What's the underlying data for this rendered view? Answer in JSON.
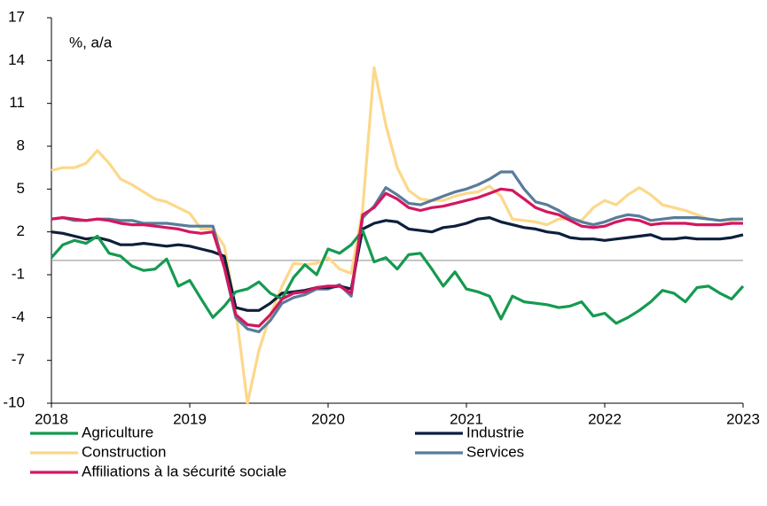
{
  "chart_data": {
    "type": "line",
    "annotation": "%, a/a",
    "x": [
      2018,
      2018.083,
      2018.167,
      2018.25,
      2018.333,
      2018.417,
      2018.5,
      2018.583,
      2018.667,
      2018.75,
      2018.833,
      2018.917,
      2019,
      2019.083,
      2019.167,
      2019.25,
      2019.333,
      2019.417,
      2019.5,
      2019.583,
      2019.667,
      2019.75,
      2019.833,
      2019.917,
      2020,
      2020.083,
      2020.167,
      2020.25,
      2020.333,
      2020.417,
      2020.5,
      2020.583,
      2020.667,
      2020.75,
      2020.833,
      2020.917,
      2021,
      2021.083,
      2021.167,
      2021.25,
      2021.333,
      2021.417,
      2021.5,
      2021.583,
      2021.667,
      2021.75,
      2021.833,
      2021.917,
      2022,
      2022.083,
      2022.167,
      2022.25,
      2022.333,
      2022.417,
      2022.5,
      2022.583,
      2022.667,
      2022.75,
      2022.833,
      2022.917,
      2023
    ],
    "series": [
      {
        "name": "Agriculture",
        "color": "#159a50",
        "values": [
          0.2,
          1.1,
          1.4,
          1.2,
          1.7,
          0.5,
          0.3,
          -0.4,
          -0.7,
          -0.6,
          0.1,
          -1.8,
          -1.4,
          -2.7,
          -4.0,
          -3.2,
          -2.2,
          -2.0,
          -1.5,
          -2.3,
          -2.7,
          -1.2,
          -0.3,
          -1.0,
          0.8,
          0.5,
          1.1,
          2.1,
          -0.1,
          0.2,
          -0.6,
          0.4,
          0.5,
          -0.6,
          -1.8,
          -0.8,
          -2.0,
          -2.2,
          -2.5,
          -4.1,
          -2.5,
          -2.9,
          -3.0,
          -3.1,
          -3.3,
          -3.2,
          -2.9,
          -3.9,
          -3.7,
          -4.4,
          -4.0,
          -3.5,
          -2.9,
          -2.1,
          -2.3,
          -2.9,
          -1.9,
          -1.8,
          -2.3,
          -2.7,
          -1.8
        ]
      },
      {
        "name": "Industrie",
        "color": "#0d1f3c",
        "values": [
          2.0,
          1.9,
          1.7,
          1.5,
          1.6,
          1.4,
          1.1,
          1.1,
          1.2,
          1.1,
          1.0,
          1.1,
          1.0,
          0.8,
          0.6,
          0.3,
          -3.3,
          -3.5,
          -3.5,
          -3.0,
          -2.3,
          -2.2,
          -2.1,
          -1.9,
          -1.9,
          -1.8,
          -2.0,
          2.2,
          2.6,
          2.8,
          2.7,
          2.2,
          2.1,
          2.0,
          2.3,
          2.4,
          2.6,
          2.9,
          3.0,
          2.7,
          2.5,
          2.3,
          2.2,
          2.0,
          1.9,
          1.6,
          1.5,
          1.5,
          1.4,
          1.5,
          1.6,
          1.7,
          1.8,
          1.5,
          1.5,
          1.6,
          1.5,
          1.5,
          1.5,
          1.6,
          1.8
        ]
      },
      {
        "name": "Construction",
        "color": "#fcd88a",
        "values": [
          6.3,
          6.5,
          6.5,
          6.8,
          7.7,
          6.8,
          5.7,
          5.3,
          4.8,
          4.3,
          4.1,
          3.7,
          3.3,
          2.2,
          2.2,
          1.0,
          -3.5,
          -10.0,
          -6.3,
          -3.8,
          -1.8,
          -0.2,
          -0.3,
          -0.2,
          0.2,
          -0.6,
          -0.9,
          3.6,
          13.5,
          9.5,
          6.5,
          4.9,
          4.3,
          4.2,
          4.2,
          4.5,
          4.7,
          4.8,
          5.2,
          4.5,
          2.9,
          2.8,
          2.7,
          2.5,
          2.9,
          2.9,
          2.8,
          3.7,
          4.2,
          3.9,
          4.6,
          5.1,
          4.6,
          3.9,
          3.7,
          3.5,
          3.2,
          2.9,
          2.8,
          2.8,
          2.9
        ]
      },
      {
        "name": "Services",
        "color": "#587c9b",
        "values": [
          2.9,
          3.0,
          2.8,
          2.8,
          2.9,
          2.9,
          2.8,
          2.8,
          2.6,
          2.6,
          2.6,
          2.5,
          2.4,
          2.4,
          2.4,
          -0.5,
          -4.0,
          -4.8,
          -5.0,
          -4.2,
          -3.0,
          -2.6,
          -2.4,
          -2.0,
          -2.0,
          -1.7,
          -2.5,
          3.0,
          3.8,
          5.1,
          4.6,
          4.0,
          3.9,
          4.2,
          4.5,
          4.8,
          5.0,
          5.3,
          5.7,
          6.2,
          6.2,
          5.0,
          4.1,
          3.9,
          3.5,
          3.0,
          2.7,
          2.5,
          2.7,
          3.0,
          3.2,
          3.1,
          2.8,
          2.9,
          3.0,
          3.0,
          3.0,
          2.9,
          2.8,
          2.9,
          2.9
        ]
      },
      {
        "name": "Affiliations à la sécurité sociale",
        "color": "#d3175f",
        "values": [
          2.9,
          3.0,
          2.9,
          2.8,
          2.9,
          2.8,
          2.6,
          2.5,
          2.5,
          2.4,
          2.3,
          2.2,
          2.0,
          1.9,
          2.0,
          -0.5,
          -3.8,
          -4.5,
          -4.6,
          -3.8,
          -2.7,
          -2.3,
          -2.2,
          -1.9,
          -1.8,
          -1.8,
          -2.3,
          3.2,
          3.7,
          4.7,
          4.3,
          3.7,
          3.5,
          3.7,
          3.8,
          4.0,
          4.2,
          4.4,
          4.7,
          5.0,
          4.9,
          4.3,
          3.7,
          3.4,
          3.2,
          2.8,
          2.4,
          2.3,
          2.4,
          2.7,
          2.9,
          2.8,
          2.5,
          2.6,
          2.6,
          2.6,
          2.5,
          2.5,
          2.5,
          2.6,
          2.6
        ]
      }
    ],
    "xlim": [
      2018,
      2023
    ],
    "xticks": [
      2018,
      2019,
      2020,
      2021,
      2022,
      2023
    ],
    "ylim": [
      -10,
      17
    ],
    "yticks": [
      17,
      14,
      11,
      8,
      5,
      2,
      -1,
      -4,
      -7,
      -10
    ]
  }
}
